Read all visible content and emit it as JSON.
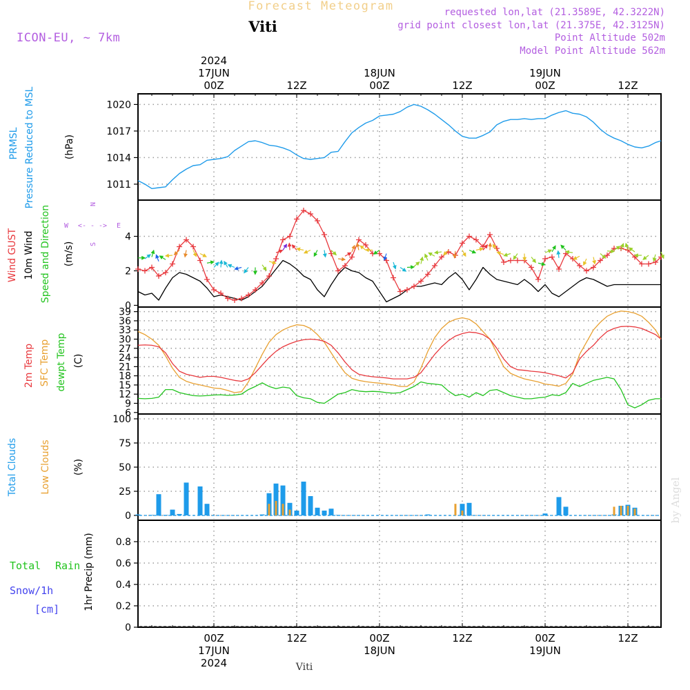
{
  "header": {
    "product": "Forecast Meteogram",
    "model": "ICON-EU, ~ 7km",
    "location": "Viti",
    "requested": "requested lon,lat (21.3589E, 42.3222N)",
    "grid_point": "grid point closest lon,lat (21.375E, 42.3125N)",
    "point_altitude": "Point Altitude 502m",
    "model_altitude": "Model Point Altitude 562m",
    "watermark": "by Angel",
    "footer_location": "Viti"
  },
  "time_axis": {
    "top_labels": [
      {
        "hour": 0,
        "lines": [
          "2024",
          "17JUN",
          "00Z"
        ]
      },
      {
        "hour": 12,
        "lines": [
          "12Z"
        ]
      },
      {
        "hour": 24,
        "lines": [
          "18JUN",
          "00Z"
        ]
      },
      {
        "hour": 36,
        "lines": [
          "12Z"
        ]
      },
      {
        "hour": 48,
        "lines": [
          "19JUN",
          "00Z"
        ]
      },
      {
        "hour": 60,
        "lines": [
          "12Z"
        ]
      }
    ],
    "bottom_labels": [
      {
        "hour": 0,
        "lines": [
          "00Z",
          "17JUN",
          "2024"
        ]
      },
      {
        "hour": 12,
        "lines": [
          "12Z"
        ]
      },
      {
        "hour": 24,
        "lines": [
          "00Z",
          "18JUN"
        ]
      },
      {
        "hour": 36,
        "lines": [
          "12Z"
        ]
      },
      {
        "hour": 48,
        "lines": [
          "00Z",
          "19JUN"
        ]
      },
      {
        "hour": 60,
        "lines": [
          "12Z"
        ]
      }
    ],
    "start_hour": -11,
    "end_hour": 64.8
  },
  "colors": {
    "pressure": "#1e9bea",
    "gust": "#e8383d",
    "wind": "#000000",
    "temp": "#e8383d",
    "sfc_temp": "#e8a030",
    "dewpt": "#22c31e",
    "total_clouds": "#1e9bea",
    "low_clouds": "#e8a030",
    "rain": "#22c31e",
    "snow": "#4444ee",
    "header_purple": "#b35ee0",
    "header_orange": "#f2cf8a"
  },
  "panels": {
    "pressure": {
      "labels": [
        "PRMSL",
        "Pressure Reduced to MSL"
      ],
      "unit": "(hPa)",
      "yticks": [
        "1011",
        "1014",
        "1017",
        "1020"
      ]
    },
    "wind": {
      "labels": [
        "Wind GUST",
        "10m Wind",
        "Speed and Direction"
      ],
      "unit": "(m/s)",
      "yticks": [
        "0",
        "2",
        "4"
      ],
      "compass": {
        "n": "N",
        "s": "S",
        "w": "W",
        "e": "E",
        "arrow": "<- - ->"
      }
    },
    "temp": {
      "labels": [
        "2m Temp",
        "SFC Temp",
        "dewpt Temp"
      ],
      "unit": "(C)",
      "yticks": [
        "6",
        "9",
        "12",
        "15",
        "18",
        "21",
        "24",
        "27",
        "30",
        "33",
        "36",
        "39"
      ]
    },
    "clouds": {
      "labels": [
        "Total Clouds",
        "Low Clouds"
      ],
      "unit": "(%)",
      "yticks": [
        "0",
        "25",
        "50",
        "75",
        "100"
      ]
    },
    "precip": {
      "labels": [
        "Total",
        "Rain",
        "Snow/1h",
        "[cm]"
      ],
      "unit": "1hr Precip (mm)",
      "yticks": [
        "0",
        "0.2",
        "0.4",
        "0.6",
        "0.8"
      ]
    }
  },
  "chart_data": [
    {
      "type": "line",
      "title": "PRMSL Pressure Reduced to MSL",
      "ylabel": "(hPa)",
      "ylim": [
        1009.2,
        1021.2
      ],
      "x": [
        -11,
        -10,
        -9,
        -8,
        -7,
        -6,
        -5,
        -4,
        -3,
        -2,
        -1,
        0,
        1,
        2,
        3,
        4,
        5,
        6,
        7,
        8,
        9,
        10,
        11,
        12,
        13,
        14,
        15,
        16,
        17,
        18,
        19,
        20,
        21,
        22,
        23,
        24,
        25,
        26,
        27,
        28,
        29,
        30,
        31,
        32,
        33,
        34,
        35,
        36,
        37,
        38,
        39,
        40,
        41,
        42,
        43,
        44,
        45,
        46,
        47,
        48,
        49,
        50,
        51,
        52,
        53,
        54,
        55,
        56,
        57,
        58,
        59,
        60,
        61,
        62,
        63,
        64,
        64.8
      ],
      "series": [
        {
          "name": "PRMSL",
          "values": [
            1011.4,
            1011.0,
            1010.5,
            1010.6,
            1010.7,
            1011.5,
            1012.2,
            1012.7,
            1013.1,
            1013.2,
            1013.7,
            1013.8,
            1013.9,
            1014.1,
            1014.8,
            1015.3,
            1015.8,
            1015.9,
            1015.7,
            1015.4,
            1015.3,
            1015.1,
            1014.8,
            1014.3,
            1013.9,
            1013.8,
            1013.9,
            1014.0,
            1014.6,
            1014.7,
            1015.8,
            1016.8,
            1017.4,
            1017.9,
            1018.2,
            1018.7,
            1018.8,
            1018.9,
            1019.2,
            1019.7,
            1020.0,
            1019.8,
            1019.4,
            1018.9,
            1018.3,
            1017.7,
            1017.0,
            1016.4,
            1016.2,
            1016.2,
            1016.5,
            1016.9,
            1017.7,
            1018.1,
            1018.3,
            1018.3,
            1018.4,
            1018.3,
            1018.4,
            1018.4,
            1018.8,
            1019.1,
            1019.3,
            1019.0,
            1018.9,
            1018.6,
            1018.0,
            1017.2,
            1016.6,
            1016.2,
            1015.9,
            1015.5,
            1015.2,
            1015.1,
            1015.3,
            1015.7,
            1015.9
          ]
        }
      ]
    },
    {
      "type": "line",
      "title": "Wind GUST / 10m Wind",
      "ylabel": "(m/s)",
      "ylim": [
        -0.1,
        6.1
      ],
      "x": [
        -11,
        -10,
        -9,
        -8,
        -7,
        -6,
        -5,
        -4,
        -3,
        -2,
        -1,
        0,
        1,
        2,
        3,
        4,
        5,
        6,
        7,
        8,
        9,
        10,
        11,
        12,
        13,
        14,
        15,
        16,
        17,
        18,
        19,
        20,
        21,
        22,
        23,
        24,
        25,
        26,
        27,
        28,
        29,
        30,
        31,
        32,
        33,
        34,
        35,
        36,
        37,
        38,
        39,
        40,
        41,
        42,
        43,
        44,
        45,
        46,
        47,
        48,
        49,
        50,
        51,
        52,
        53,
        54,
        55,
        56,
        57,
        58,
        59,
        60,
        61,
        62,
        63,
        64,
        64.8
      ],
      "series": [
        {
          "name": "Wind GUST",
          "values": [
            2.1,
            2.0,
            2.2,
            1.7,
            1.9,
            2.4,
            3.4,
            3.8,
            3.4,
            2.6,
            1.5,
            0.9,
            0.7,
            0.4,
            0.3,
            0.4,
            0.6,
            0.9,
            1.3,
            1.7,
            2.7,
            3.8,
            4.0,
            5.0,
            5.5,
            5.3,
            4.9,
            4.1,
            3.0,
            2.0,
            2.3,
            2.8,
            3.8,
            3.5,
            3.0,
            3.0,
            2.6,
            1.6,
            0.8,
            0.9,
            1.1,
            1.4,
            1.8,
            2.3,
            2.8,
            3.1,
            2.9,
            3.6,
            4.0,
            3.8,
            3.4,
            4.1,
            3.3,
            2.5,
            2.6,
            2.6,
            2.6,
            2.2,
            1.5,
            2.7,
            2.8,
            2.1,
            3.0,
            2.7,
            2.3,
            2.0,
            2.2,
            2.6,
            2.9,
            3.3,
            3.3,
            3.2,
            2.8,
            2.4,
            2.4,
            2.5,
            2.8
          ]
        },
        {
          "name": "10m Wind",
          "values": [
            0.8,
            0.6,
            0.7,
            0.3,
            1.0,
            1.6,
            1.9,
            1.8,
            1.6,
            1.4,
            1.0,
            0.5,
            0.6,
            0.5,
            0.4,
            0.3,
            0.5,
            0.8,
            1.1,
            1.6,
            2.1,
            2.6,
            2.4,
            2.1,
            1.7,
            1.5,
            0.9,
            0.5,
            1.2,
            1.8,
            2.2,
            2.0,
            1.9,
            1.6,
            1.4,
            0.8,
            0.2,
            0.4,
            0.6,
            0.9,
            1.1,
            1.1,
            1.2,
            1.3,
            1.2,
            1.6,
            1.9,
            1.5,
            0.9,
            1.5,
            2.2,
            1.8,
            1.5,
            1.4,
            1.3,
            1.2,
            1.5,
            1.2,
            0.8,
            1.2,
            0.7,
            0.5,
            0.8,
            1.1,
            1.4,
            1.6,
            1.5,
            1.3,
            1.1,
            1.2,
            1.2,
            1.2,
            1.2,
            1.2,
            1.2,
            1.2,
            1.2
          ]
        }
      ]
    },
    {
      "type": "line",
      "title": "2m Temp / SFC Temp / dewpt Temp",
      "ylabel": "(C)",
      "ylim": [
        5.5,
        40.5
      ],
      "x": [
        -11,
        -10,
        -9,
        -8,
        -7,
        -6,
        -5,
        -4,
        -3,
        -2,
        -1,
        0,
        1,
        2,
        3,
        4,
        5,
        6,
        7,
        8,
        9,
        10,
        11,
        12,
        13,
        14,
        15,
        16,
        17,
        18,
        19,
        20,
        21,
        22,
        23,
        24,
        25,
        26,
        27,
        28,
        29,
        30,
        31,
        32,
        33,
        34,
        35,
        36,
        37,
        38,
        39,
        40,
        41,
        42,
        43,
        44,
        45,
        46,
        47,
        48,
        49,
        50,
        51,
        52,
        53,
        54,
        55,
        56,
        57,
        58,
        59,
        60,
        61,
        62,
        63,
        64,
        64.8
      ],
      "series": [
        {
          "name": "2m Temp",
          "values": [
            28.0,
            28.1,
            28.0,
            27.5,
            25.5,
            22.0,
            19.5,
            18.5,
            18.0,
            17.5,
            17.8,
            17.8,
            17.5,
            17.0,
            16.5,
            16.2,
            17.0,
            19.0,
            21.5,
            24.0,
            26.0,
            27.5,
            28.5,
            29.3,
            29.8,
            30.0,
            29.8,
            29.3,
            28.0,
            25.5,
            22.5,
            20.0,
            18.5,
            18.0,
            17.7,
            17.5,
            17.3,
            17.0,
            17.0,
            17.0,
            17.5,
            19.0,
            22.0,
            25.0,
            27.5,
            29.5,
            31.0,
            31.8,
            32.3,
            32.1,
            31.5,
            30.0,
            27.0,
            23.5,
            21.0,
            20.0,
            19.8,
            19.5,
            19.3,
            19.0,
            18.5,
            18.0,
            17.3,
            19.0,
            23.5,
            26.0,
            28.0,
            30.5,
            32.5,
            33.5,
            34.1,
            34.2,
            34.0,
            33.5,
            32.5,
            31.5,
            30.0
          ]
        },
        {
          "name": "SFC Temp",
          "values": [
            32.5,
            31.5,
            30.0,
            28.0,
            24.5,
            20.5,
            17.5,
            16.2,
            15.5,
            15.0,
            14.5,
            14.0,
            13.8,
            13.2,
            12.5,
            12.8,
            16.0,
            20.5,
            25.0,
            29.0,
            31.5,
            33.0,
            34.0,
            34.7,
            34.5,
            33.5,
            31.5,
            29.0,
            25.5,
            22.0,
            19.0,
            17.2,
            16.5,
            16.1,
            15.8,
            15.6,
            15.3,
            15.0,
            14.5,
            14.5,
            16.0,
            20.5,
            26.0,
            30.5,
            33.5,
            35.5,
            36.5,
            37.0,
            36.5,
            35.0,
            32.5,
            30.0,
            25.5,
            21.0,
            18.8,
            17.8,
            17.0,
            16.5,
            16.0,
            15.3,
            15.0,
            14.6,
            15.5,
            18.5,
            25.0,
            29.0,
            33.0,
            35.5,
            37.5,
            38.6,
            39.2,
            39.0,
            38.5,
            37.5,
            35.5,
            33.0,
            30.0
          ]
        },
        {
          "name": "dewpt Temp",
          "values": [
            10.6,
            10.5,
            10.6,
            11.0,
            13.5,
            13.5,
            12.5,
            12.0,
            11.5,
            11.4,
            11.5,
            11.7,
            11.8,
            11.6,
            11.7,
            12.0,
            13.5,
            14.5,
            15.7,
            14.5,
            13.8,
            14.3,
            14.0,
            11.5,
            10.8,
            10.5,
            9.3,
            9.0,
            10.5,
            12.0,
            12.5,
            13.5,
            13.0,
            12.8,
            12.9,
            12.8,
            12.5,
            12.3,
            12.5,
            13.5,
            14.5,
            16.0,
            15.5,
            15.3,
            15.0,
            13.0,
            11.5,
            12.0,
            11.0,
            12.5,
            11.5,
            13.2,
            13.5,
            12.5,
            11.5,
            11.0,
            10.5,
            10.5,
            10.8,
            11.0,
            11.8,
            11.5,
            12.5,
            15.5,
            14.5,
            15.5,
            16.5,
            17.0,
            17.5,
            17.0,
            13.5,
            8.5,
            7.5,
            8.5,
            10.0,
            10.5,
            10.5
          ]
        }
      ]
    },
    {
      "type": "bar",
      "title": "Total Clouds / Low Clouds",
      "ylabel": "(%)",
      "ylim": [
        -5,
        105
      ],
      "series": [
        {
          "name": "Total Clouds",
          "x": [
            -11,
            -9,
            -8,
            -7,
            -6,
            -5,
            -4,
            -2,
            -1,
            7,
            8,
            9,
            10,
            11,
            12,
            13,
            14,
            15,
            16,
            17,
            18,
            31,
            36,
            37,
            48,
            50,
            51,
            58,
            59,
            60,
            61
          ],
          "values": [
            1,
            0.5,
            22,
            0.5,
            6,
            1.5,
            34,
            30,
            12,
            1,
            23,
            33,
            31,
            13,
            5,
            35,
            20,
            8,
            5,
            7,
            0.5,
            1,
            12,
            13,
            2,
            19,
            9,
            1,
            10,
            11,
            8
          ]
        },
        {
          "name": "Low Clouds",
          "x": [
            8,
            9,
            10,
            11,
            35,
            36,
            58,
            59,
            60,
            61
          ],
          "values": [
            12,
            15,
            12,
            6,
            12,
            5,
            9,
            10,
            10,
            7
          ]
        }
      ]
    },
    {
      "type": "bar",
      "title": "1hr Precip",
      "ylabel": "1hr Precip (mm)",
      "ylim": [
        0,
        1.0
      ],
      "series": [
        {
          "name": "Total Rain",
          "values": []
        },
        {
          "name": "Snow/1h",
          "values": []
        }
      ]
    }
  ]
}
